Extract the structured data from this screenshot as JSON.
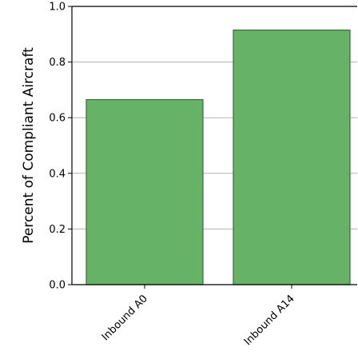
{
  "chart_data": {
    "type": "bar",
    "title": "",
    "xlabel": "",
    "ylabel": "Percent of Compliant Aircraft",
    "categories": [
      "Inbound A0",
      "Inbound A14"
    ],
    "values": [
      0.665,
      0.915
    ],
    "ylim": [
      0,
      1.0
    ],
    "yticks": [
      "0.0",
      "0.2",
      "0.4",
      "0.6",
      "0.8",
      "1.0"
    ],
    "grid": "y",
    "colors": {
      "bar_fill": "#66b266",
      "bar_edge": "#3d6b3d",
      "grid": "#b0b0b0",
      "axis": "#000000"
    }
  }
}
